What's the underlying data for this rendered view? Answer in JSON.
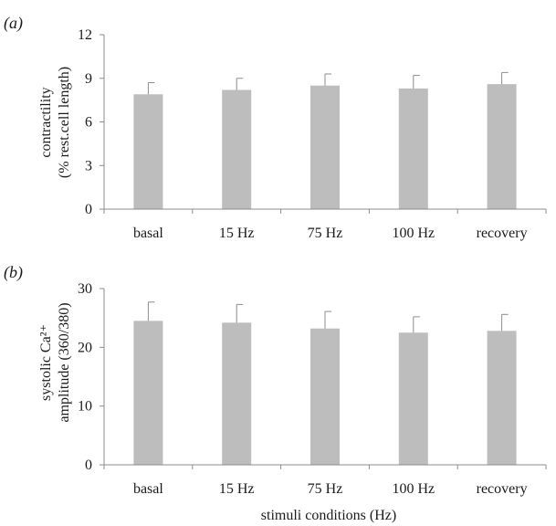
{
  "colors": {
    "bar": "#bdbdbd",
    "axis": "#8c8c8c",
    "text": "#1a1a1a"
  },
  "chart_data": [
    {
      "type": "bar",
      "panel_label": "(a)",
      "categories": [
        "basal",
        "15 Hz",
        "75 Hz",
        "100 Hz",
        "recovery"
      ],
      "values": [
        7.9,
        8.2,
        8.5,
        8.3,
        8.6
      ],
      "error_plus": [
        0.8,
        0.8,
        0.8,
        0.9,
        0.8
      ],
      "ylabel_line1": "contractility",
      "ylabel_line2": "(% rest.cell length)",
      "xlabel": "",
      "ylim": [
        0,
        12
      ],
      "yticks": [
        0,
        3,
        6,
        9,
        12
      ]
    },
    {
      "type": "bar",
      "panel_label": "(b)",
      "categories": [
        "basal",
        "15 Hz",
        "75 Hz",
        "100 Hz",
        "recovery"
      ],
      "values": [
        24.5,
        24.2,
        23.2,
        22.5,
        22.8
      ],
      "error_plus": [
        3.2,
        3.1,
        2.9,
        2.7,
        2.8
      ],
      "ylabel_line1": "systolic Ca²⁺",
      "ylabel_line2": "amplitude (360/380)",
      "xlabel": "stimuli conditions (Hz)",
      "ylim": [
        0,
        30
      ],
      "yticks": [
        0,
        10,
        20,
        30
      ]
    }
  ]
}
